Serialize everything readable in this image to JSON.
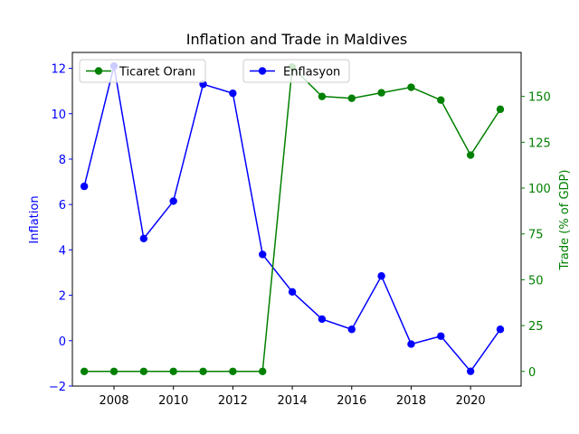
{
  "chart_data": {
    "type": "line",
    "title": "Inflation and Trade in Maldives",
    "x": [
      2007,
      2008,
      2009,
      2010,
      2011,
      2012,
      2013,
      2014,
      2015,
      2016,
      2017,
      2018,
      2019,
      2020,
      2021
    ],
    "xlim": [
      2006.6,
      2021.7
    ],
    "x_ticks": [
      2008,
      2010,
      2012,
      2014,
      2016,
      2018,
      2020
    ],
    "grid": false,
    "axes": {
      "left": {
        "label": "Inflation",
        "color": "#0000ff",
        "ylim": [
          -2.0,
          12.7
        ],
        "ticks": [
          -2,
          0,
          2,
          4,
          6,
          8,
          10,
          12
        ]
      },
      "right": {
        "label": "Trade (% of GDP)",
        "color": "#008000",
        "ylim": [
          -8,
          174
        ],
        "ticks": [
          0,
          25,
          50,
          75,
          100,
          125,
          150
        ]
      }
    },
    "series": [
      {
        "name": "Enflasyon",
        "axis": "left",
        "color": "#0000ff",
        "values": [
          6.8,
          12.1,
          4.5,
          6.15,
          11.3,
          10.9,
          3.8,
          2.15,
          0.95,
          0.5,
          2.85,
          -0.15,
          0.2,
          -1.35,
          0.5
        ]
      },
      {
        "name": "Ticaret Oranı",
        "axis": "right",
        "color": "#008000",
        "values": [
          0,
          0,
          0,
          0,
          0,
          0,
          0,
          166,
          150,
          149,
          152,
          155,
          148,
          118,
          143
        ]
      }
    ],
    "legends": [
      {
        "series": "Ticaret Oranı",
        "placement": "upper-left"
      },
      {
        "series": "Enflasyon",
        "placement": "upper-center"
      }
    ]
  }
}
